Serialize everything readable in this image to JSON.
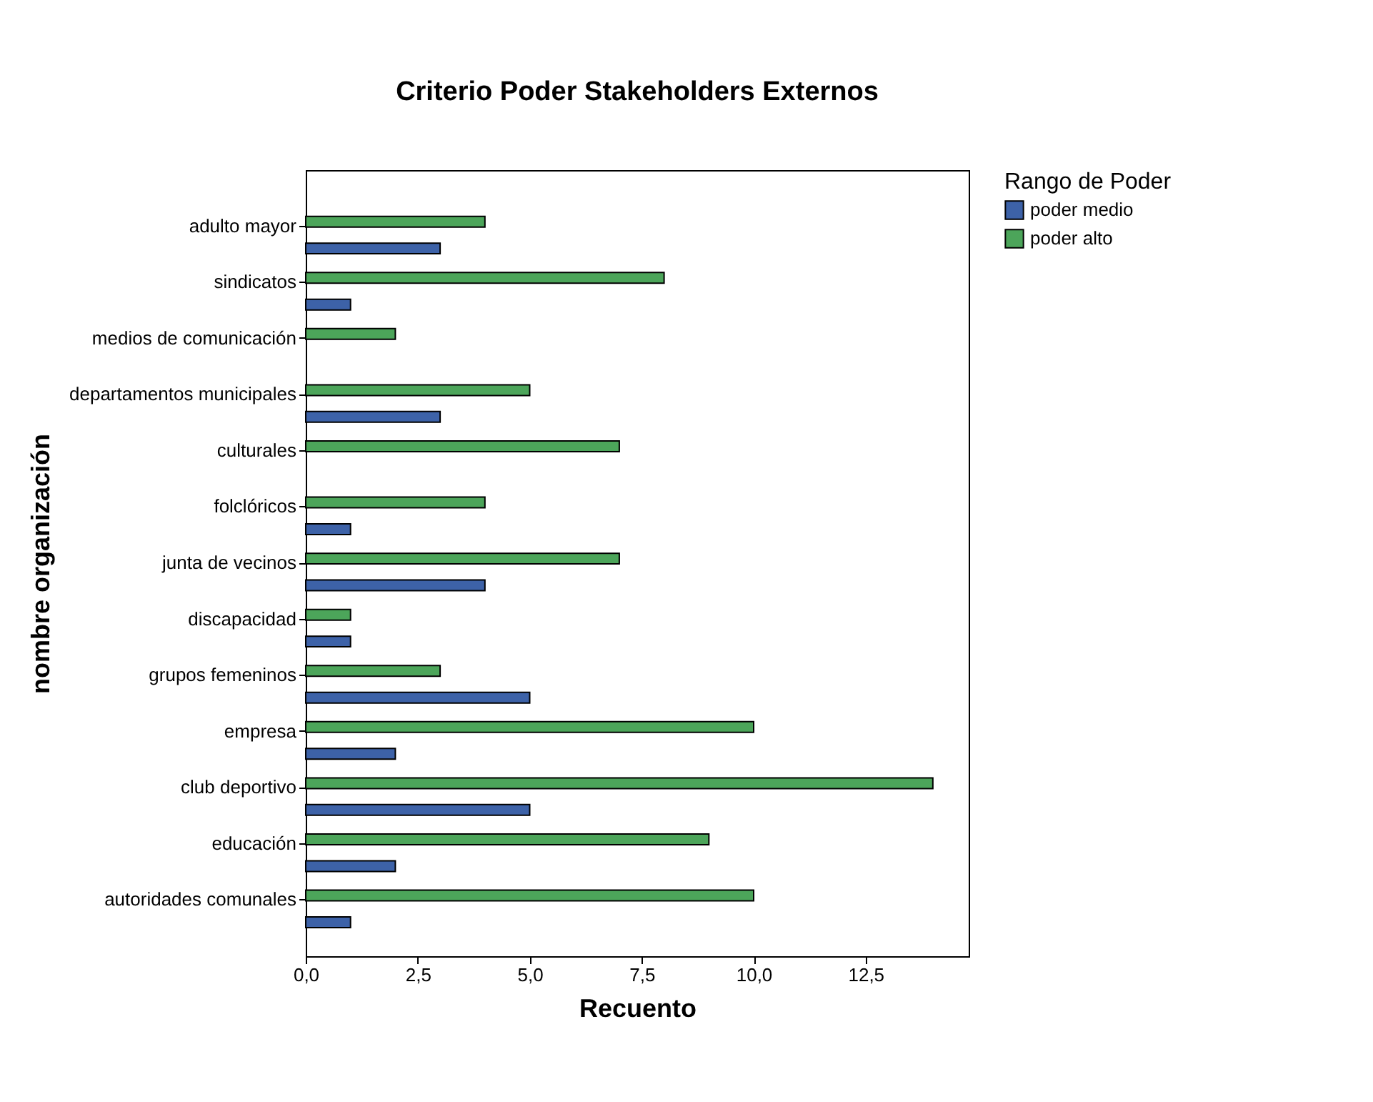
{
  "chart_data": {
    "type": "bar",
    "orientation": "horizontal",
    "title": "Criterio Poder Stakeholders Externos",
    "xlabel": "Recuento",
    "ylabel": "nombre organización",
    "legend_title": "Rango de Poder",
    "legend": "top right",
    "categories": [
      "adulto mayor",
      "sindicatos",
      "medios de comunicación",
      "departamentos municipales",
      "culturales",
      "folclóricos",
      "junta de vecinos",
      "discapacidad",
      "grupos femeninos",
      "empresa",
      "club deportivo",
      "educación",
      "autoridades comunales"
    ],
    "series": [
      {
        "name": "poder medio",
        "color": "#3d62a8",
        "values": [
          3,
          1,
          null,
          3,
          null,
          1,
          4,
          1,
          5,
          2,
          5,
          2,
          1
        ]
      },
      {
        "name": "poder alto",
        "color": "#4ca55a",
        "values": [
          4,
          8,
          2,
          5,
          7,
          4,
          7,
          1,
          3,
          10,
          14,
          9,
          10
        ]
      }
    ],
    "xlim": [
      0,
      14.8
    ],
    "xticks": [
      {
        "value": 0,
        "label": "0,0"
      },
      {
        "value": 2.5,
        "label": "2,5"
      },
      {
        "value": 5,
        "label": "5,0"
      },
      {
        "value": 7.5,
        "label": "7,5"
      },
      {
        "value": 10,
        "label": "10,0"
      },
      {
        "value": 12.5,
        "label": "12,5"
      }
    ],
    "grid": false
  }
}
